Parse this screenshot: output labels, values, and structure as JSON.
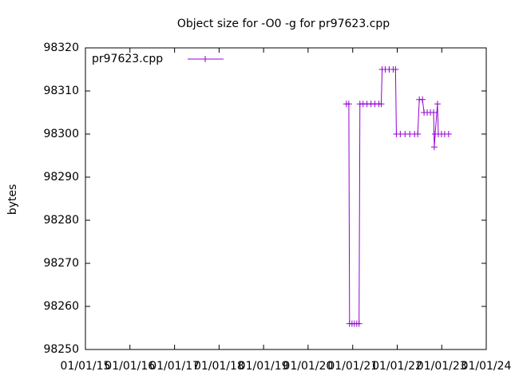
{
  "chart_data": {
    "type": "line",
    "title": "Object size for -O0 -g for pr97623.cpp",
    "y_label": "bytes",
    "x": [
      "2020-11-10",
      "2020-11-30",
      "2020-12-06",
      "2020-12-26",
      "2021-01-14",
      "2021-02-03",
      "2021-02-22",
      "2021-03-01",
      "2021-03-27",
      "2021-04-28",
      "2021-05-31",
      "2021-07-02",
      "2021-08-04",
      "2021-08-23",
      "2021-08-30",
      "2021-09-25",
      "2021-10-27",
      "2021-11-29",
      "2021-12-18",
      "2021-12-25",
      "2022-01-26",
      "2022-03-06",
      "2022-04-14",
      "2022-05-23",
      "2022-06-18",
      "2022-07-01",
      "2022-07-27",
      "2022-08-09",
      "2022-09-04",
      "2022-09-30",
      "2022-10-26",
      "2022-11-01",
      "2022-11-08",
      "2022-11-27",
      "2022-12-04",
      "2022-12-30",
      "2023-01-25",
      "2023-02-26"
    ],
    "series": [
      {
        "name": "pr97623.cpp",
        "color": "#9400d3",
        "values": [
          98307,
          98307,
          98256,
          98256,
          98256,
          98256,
          98256,
          98307,
          98307,
          98307,
          98307,
          98307,
          98307,
          98307,
          98315,
          98315,
          98315,
          98315,
          98315,
          98300,
          98300,
          98300,
          98300,
          98300,
          98300,
          98308,
          98308,
          98305,
          98305,
          98305,
          98305,
          98297,
          98300,
          98307,
          98300,
          98300,
          98300,
          98300
        ]
      }
    ],
    "xlim": [
      "2015-01-01",
      "2024-01-01"
    ],
    "xticks": [
      {
        "value": "2015-01-01",
        "label": "01/01/15"
      },
      {
        "value": "2016-01-01",
        "label": "01/01/16"
      },
      {
        "value": "2017-01-01",
        "label": "01/01/17"
      },
      {
        "value": "2018-01-01",
        "label": "01/01/18"
      },
      {
        "value": "2019-01-01",
        "label": "01/01/19"
      },
      {
        "value": "2020-01-01",
        "label": "01/01/20"
      },
      {
        "value": "2021-01-01",
        "label": "01/01/21"
      },
      {
        "value": "2022-01-01",
        "label": "01/01/22"
      },
      {
        "value": "2023-01-01",
        "label": "01/01/23"
      },
      {
        "value": "2024-01-01",
        "label": "01/01/24"
      }
    ],
    "ylim": [
      98250,
      98320
    ],
    "yticks": [
      98250,
      98260,
      98270,
      98280,
      98290,
      98300,
      98310,
      98320
    ],
    "legend": "top left"
  }
}
